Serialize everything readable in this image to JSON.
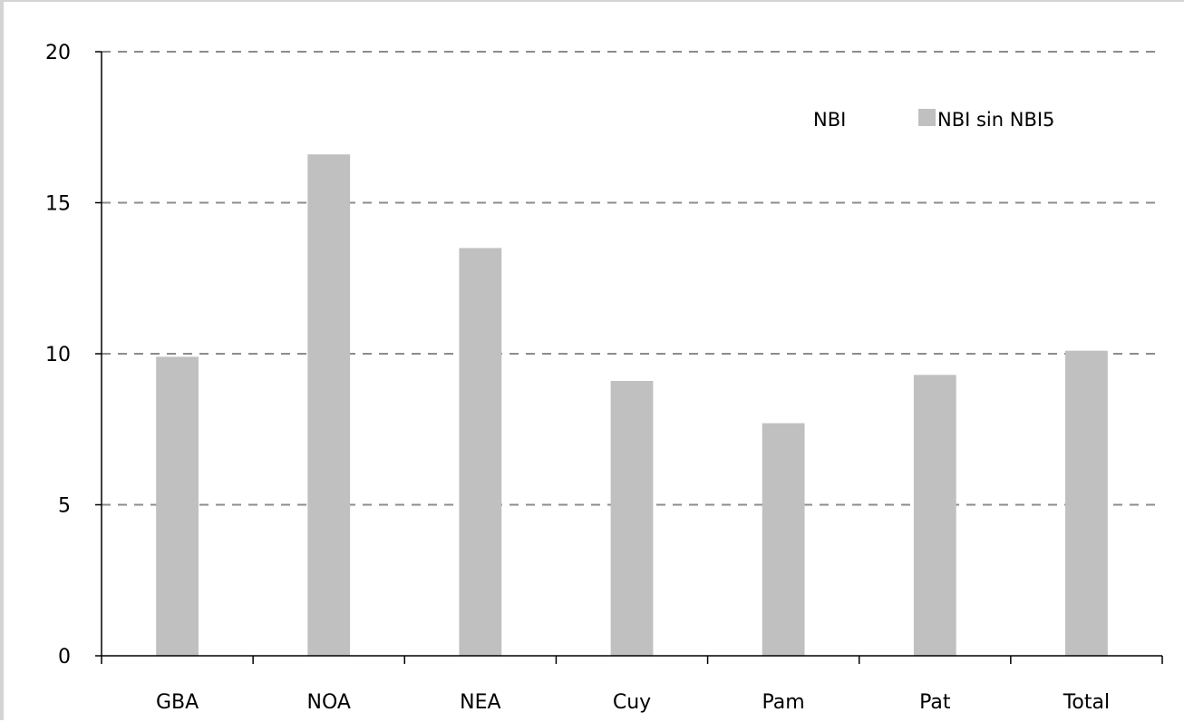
{
  "chart_data": {
    "type": "bar",
    "categories": [
      "GBA",
      "NOA",
      "NEA",
      "Cuy",
      "Pam",
      "Pat",
      "Total"
    ],
    "series": [
      {
        "name": "NBI",
        "values": [
          null,
          null,
          null,
          null,
          null,
          null,
          null
        ],
        "color": "#000000"
      },
      {
        "name": "NBI sin NBI5",
        "values": [
          9.9,
          16.6,
          13.5,
          9.1,
          7.7,
          9.3,
          10.1
        ],
        "color": "#c0c0c0"
      }
    ],
    "ylim": [
      0,
      20
    ],
    "yticks": [
      0,
      5,
      10,
      15,
      20
    ],
    "grid": true,
    "grid_style": "dashed",
    "grid_color": "#8c8c8c",
    "legend_position": "top-right",
    "title": "",
    "xlabel": "",
    "ylabel": ""
  }
}
